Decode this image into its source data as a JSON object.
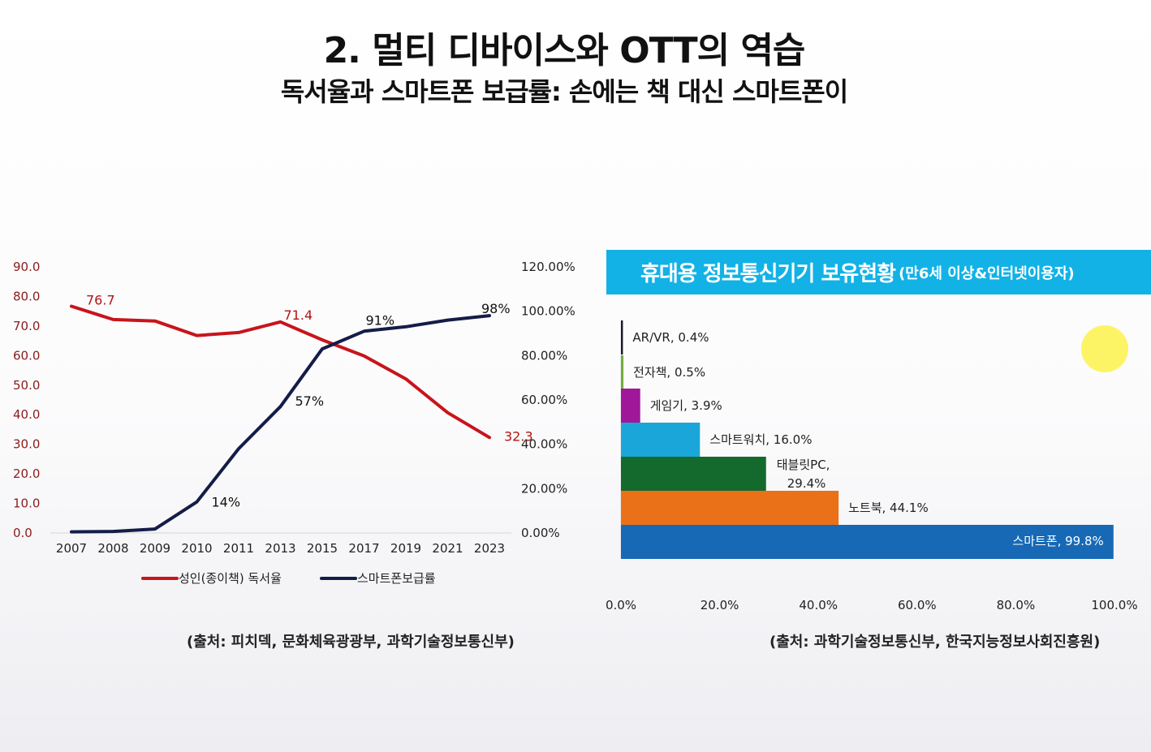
{
  "slide": {
    "title": "2. 멀티 디바이스와 OTT의 역습",
    "subtitle": "독서율과 스마트폰 보급률: 손에는 책 대신 스마트폰이",
    "source_left": "(출처: 피치덱, 문화체육광광부, 과학기술정보통신부)",
    "source_right": "(출처: 과학기술정보통신부, 한국지능정보사회진흥원)",
    "right_chart_title": "휴대용 정보통신기기 보유현황",
    "right_chart_subtitle": "(만6세 이상&인터넷이용자)"
  },
  "chart_data": [
    {
      "type": "line",
      "title": "",
      "x": [
        "2007",
        "2008",
        "2009",
        "2010",
        "2011",
        "2013",
        "2015",
        "2017",
        "2019",
        "2021",
        "2023"
      ],
      "left_axis": {
        "ylim": [
          0,
          90
        ],
        "ticks": [
          "0.0",
          "10.0",
          "20.0",
          "30.0",
          "40.0",
          "50.0",
          "60.0",
          "70.0",
          "80.0",
          "90.0"
        ],
        "color": "#8a1c1c"
      },
      "right_axis": {
        "ylim": [
          0,
          120
        ],
        "ticks": [
          "0.00%",
          "20.00%",
          "40.00%",
          "60.00%",
          "80.00%",
          "100.00%",
          "120.00%"
        ]
      },
      "series": [
        {
          "name": "성인(종이책) 독서율",
          "axis": "left",
          "color": "#c8141c",
          "values": [
            76.7,
            72.2,
            71.7,
            66.8,
            67.8,
            71.4,
            65.3,
            59.9,
            52.1,
            40.7,
            32.3
          ],
          "data_labels": [
            {
              "index": 0,
              "text": "76.7"
            },
            {
              "index": 5,
              "text": "71.4"
            },
            {
              "index": 10,
              "text": "32.3"
            }
          ]
        },
        {
          "name": "스마트폰보급률",
          "axis": "right",
          "color": "#141c48",
          "values": [
            0.5,
            0.7,
            1.8,
            14,
            38,
            57,
            83,
            91,
            93,
            96,
            98
          ],
          "data_labels": [
            {
              "index": 3,
              "text": "14%"
            },
            {
              "index": 5,
              "text": "57%"
            },
            {
              "index": 7,
              "text": "91%"
            },
            {
              "index": 10,
              "text": "98%"
            }
          ]
        }
      ],
      "legend": "bottom",
      "grid": false
    },
    {
      "type": "bar",
      "orientation": "horizontal",
      "title": "휴대용 정보통신기기 보유현황",
      "xlim": [
        0,
        100
      ],
      "xticks": [
        "0.0%",
        "20.0%",
        "40.0%",
        "60.0%",
        "80.0%",
        "100.0%"
      ],
      "categories": [
        "AR/VR",
        "전자책",
        "게임기",
        "스마트워치",
        "태블릿PC",
        "노트북",
        "스마트폰"
      ],
      "values": [
        0.4,
        0.5,
        3.9,
        16.0,
        29.4,
        44.1,
        99.8
      ],
      "labels": [
        "AR/VR, 0.4%",
        "전자책, 0.5%",
        "게임기, 3.9%",
        "스마트워치, 16.0%",
        "태블릿PC, 29.4%",
        "노트북, 44.1%",
        "스마트폰, 99.8%"
      ],
      "colors": [
        "#1a1a2e",
        "#6fae3a",
        "#a0179a",
        "#1ba6da",
        "#136a2c",
        "#ea7118",
        "#1769b6"
      ],
      "grid": false
    }
  ]
}
